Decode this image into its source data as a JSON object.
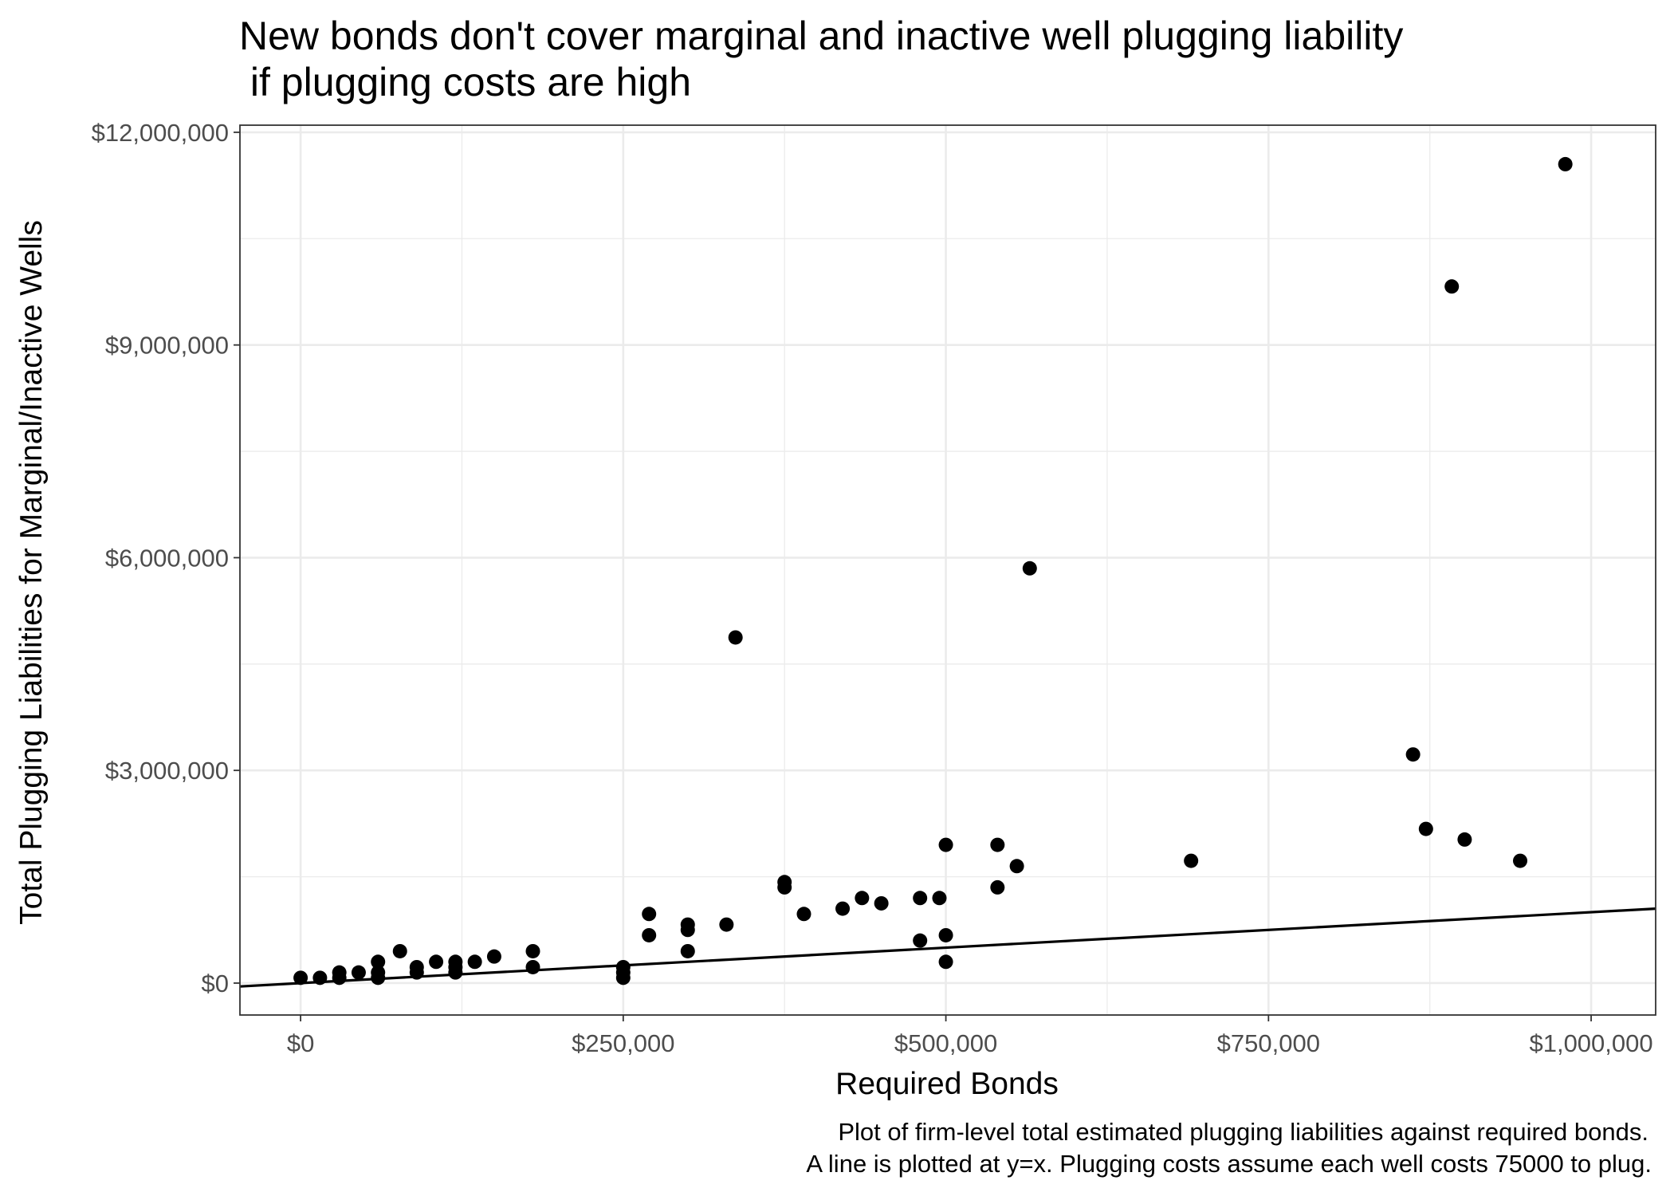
{
  "chart_data": {
    "type": "scatter",
    "title": [
      "New bonds don't cover marginal and inactive well plugging liability",
      " if plugging costs are high"
    ],
    "xlabel": "Required Bonds",
    "ylabel": "Total Plugging Liabilities for Marginal/Inactive Wells",
    "caption": [
      "Plot of firm-level total estimated plugging liabilities against required bonds.",
      "A line is plotted at y=x. Plugging costs assume each well costs 75000 to plug."
    ],
    "xlim": [
      -47000,
      1050000
    ],
    "ylim": [
      -450000,
      12100000
    ],
    "x_ticks": [
      0,
      250000,
      500000,
      750000,
      1000000
    ],
    "x_tick_labels": [
      "$0",
      "$250,000",
      "$500,000",
      "$750,000",
      "$1,000,000"
    ],
    "y_ticks": [
      0,
      3000000,
      6000000,
      9000000,
      12000000
    ],
    "y_tick_labels": [
      "$0",
      "$3,000,000",
      "$6,000,000",
      "$9,000,000",
      "$12,000,000"
    ],
    "grid": true,
    "reference_line": "y=x",
    "points": [
      {
        "x": 0,
        "y": 75000
      },
      {
        "x": 15000,
        "y": 75000
      },
      {
        "x": 30000,
        "y": 75000
      },
      {
        "x": 30000,
        "y": 150000
      },
      {
        "x": 45000,
        "y": 150000
      },
      {
        "x": 60000,
        "y": 75000
      },
      {
        "x": 60000,
        "y": 150000
      },
      {
        "x": 60000,
        "y": 300000
      },
      {
        "x": 77000,
        "y": 450000
      },
      {
        "x": 90000,
        "y": 150000
      },
      {
        "x": 90000,
        "y": 225000
      },
      {
        "x": 105000,
        "y": 300000
      },
      {
        "x": 120000,
        "y": 150000
      },
      {
        "x": 120000,
        "y": 225000
      },
      {
        "x": 120000,
        "y": 300000
      },
      {
        "x": 135000,
        "y": 300000
      },
      {
        "x": 150000,
        "y": 375000
      },
      {
        "x": 180000,
        "y": 225000
      },
      {
        "x": 180000,
        "y": 450000
      },
      {
        "x": 250000,
        "y": 75000
      },
      {
        "x": 250000,
        "y": 150000
      },
      {
        "x": 250000,
        "y": 225000
      },
      {
        "x": 270000,
        "y": 675000
      },
      {
        "x": 270000,
        "y": 975000
      },
      {
        "x": 300000,
        "y": 450000
      },
      {
        "x": 300000,
        "y": 750000
      },
      {
        "x": 300000,
        "y": 825000
      },
      {
        "x": 330000,
        "y": 825000
      },
      {
        "x": 337000,
        "y": 4875000
      },
      {
        "x": 375000,
        "y": 1350000
      },
      {
        "x": 375000,
        "y": 1425000
      },
      {
        "x": 390000,
        "y": 975000
      },
      {
        "x": 420000,
        "y": 1050000
      },
      {
        "x": 435000,
        "y": 1200000
      },
      {
        "x": 450000,
        "y": 1125000
      },
      {
        "x": 480000,
        "y": 600000
      },
      {
        "x": 480000,
        "y": 1200000
      },
      {
        "x": 495000,
        "y": 1200000
      },
      {
        "x": 500000,
        "y": 300000
      },
      {
        "x": 500000,
        "y": 675000
      },
      {
        "x": 500000,
        "y": 1950000
      },
      {
        "x": 540000,
        "y": 1350000
      },
      {
        "x": 540000,
        "y": 1950000
      },
      {
        "x": 555000,
        "y": 1650000
      },
      {
        "x": 565000,
        "y": 5850000
      },
      {
        "x": 690000,
        "y": 1725000
      },
      {
        "x": 862000,
        "y": 3225000
      },
      {
        "x": 872000,
        "y": 2175000
      },
      {
        "x": 892000,
        "y": 9825000
      },
      {
        "x": 902000,
        "y": 2025000
      },
      {
        "x": 945000,
        "y": 1725000
      },
      {
        "x": 980000,
        "y": 11550000
      }
    ]
  }
}
